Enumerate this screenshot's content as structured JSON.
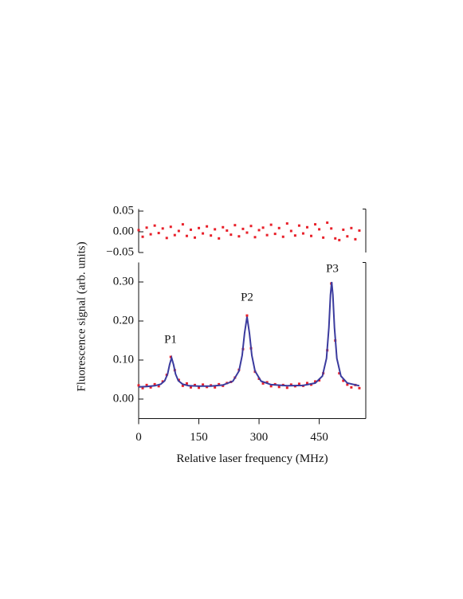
{
  "chart_data": [
    {
      "type": "scatter",
      "xlim": [
        0,
        566
      ],
      "ylim": [
        -0.05,
        0.055
      ],
      "yticks": [
        {
          "value": 0.05,
          "label": "0.05"
        },
        {
          "value": 0.0,
          "label": "0.00"
        },
        {
          "value": -0.05,
          "label": "−0.05"
        }
      ],
      "series": [
        {
          "mode": "markers",
          "color": "#e8202a",
          "x": [
            0,
            10,
            20,
            30,
            40,
            50,
            60,
            70,
            80,
            90,
            100,
            110,
            120,
            130,
            140,
            150,
            160,
            170,
            180,
            190,
            200,
            210,
            220,
            230,
            240,
            250,
            260,
            270,
            280,
            290,
            300,
            310,
            320,
            330,
            340,
            350,
            360,
            370,
            380,
            390,
            400,
            410,
            420,
            430,
            440,
            450,
            460,
            470,
            480,
            490,
            500,
            510,
            520,
            530,
            540,
            550
          ],
          "values": [
            0.004,
            -0.012,
            0.01,
            -0.006,
            0.015,
            -0.003,
            0.008,
            -0.015,
            0.012,
            -0.008,
            0.002,
            0.018,
            -0.01,
            0.005,
            -0.014,
            0.009,
            -0.004,
            0.013,
            -0.009,
            0.006,
            -0.016,
            0.011,
            0.003,
            -0.007,
            0.016,
            -0.011,
            0.007,
            -0.002,
            0.014,
            -0.013,
            0.004,
            0.01,
            -0.008,
            0.017,
            -0.005,
            0.009,
            -0.012,
            0.02,
            0.002,
            -0.009,
            0.015,
            -0.004,
            0.011,
            -0.01,
            0.018,
            0.006,
            -0.014,
            0.022,
            0.008,
            -0.016,
            -0.02,
            0.005,
            -0.011,
            0.009,
            -0.018,
            0.003
          ]
        }
      ]
    },
    {
      "type": "scatter",
      "xlabel": "Relative laser frequency (MHz)",
      "ylabel": "Fluorescence signal (arb. units)",
      "annotations": [
        "P1",
        "P2",
        "P3"
      ],
      "xlim": [
        0,
        566
      ],
      "xticks": [
        0,
        150,
        300,
        450
      ],
      "ylim": [
        -0.05,
        0.35
      ],
      "yticks": [
        {
          "value": 0.0,
          "label": "0.00"
        },
        {
          "value": 0.1,
          "label": "0.10"
        },
        {
          "value": 0.2,
          "label": "0.20"
        },
        {
          "value": 0.3,
          "label": "0.30"
        }
      ],
      "series": [
        {
          "mode": "markers",
          "color": "#e8202a",
          "x": [
            0,
            10,
            20,
            30,
            40,
            50,
            60,
            70,
            80,
            90,
            100,
            110,
            120,
            130,
            140,
            150,
            160,
            170,
            180,
            190,
            200,
            210,
            220,
            230,
            240,
            250,
            260,
            270,
            280,
            290,
            300,
            310,
            320,
            330,
            340,
            350,
            360,
            370,
            380,
            390,
            400,
            410,
            420,
            430,
            440,
            450,
            460,
            470,
            480,
            490,
            500,
            510,
            520,
            530,
            540,
            550
          ],
          "values": [
            0.035,
            0.028,
            0.036,
            0.03,
            0.038,
            0.033,
            0.045,
            0.062,
            0.108,
            0.074,
            0.049,
            0.034,
            0.04,
            0.03,
            0.036,
            0.029,
            0.037,
            0.031,
            0.035,
            0.03,
            0.038,
            0.034,
            0.041,
            0.044,
            0.055,
            0.075,
            0.128,
            0.214,
            0.13,
            0.07,
            0.052,
            0.04,
            0.043,
            0.033,
            0.038,
            0.031,
            0.036,
            0.029,
            0.037,
            0.033,
            0.039,
            0.034,
            0.041,
            0.037,
            0.045,
            0.048,
            0.066,
            0.125,
            0.296,
            0.15,
            0.066,
            0.047,
            0.037,
            0.03,
            0.036,
            0.028
          ]
        },
        {
          "mode": "line",
          "color": "#3b3b9e",
          "x": [
            0,
            20,
            40,
            55,
            65,
            72,
            77,
            82,
            87,
            92,
            99,
            110,
            125,
            150,
            180,
            210,
            235,
            250,
            258,
            264,
            270,
            276,
            282,
            290,
            305,
            330,
            370,
            410,
            440,
            458,
            468,
            474,
            478,
            481,
            484,
            488,
            494,
            504,
            520,
            550
          ],
          "values": [
            0.031,
            0.032,
            0.034,
            0.038,
            0.047,
            0.064,
            0.088,
            0.106,
            0.088,
            0.064,
            0.047,
            0.038,
            0.034,
            0.033,
            0.033,
            0.036,
            0.046,
            0.072,
            0.112,
            0.169,
            0.211,
            0.169,
            0.112,
            0.072,
            0.046,
            0.037,
            0.034,
            0.035,
            0.041,
            0.059,
            0.104,
            0.183,
            0.267,
            0.3,
            0.267,
            0.183,
            0.104,
            0.059,
            0.041,
            0.034
          ]
        }
      ]
    }
  ]
}
